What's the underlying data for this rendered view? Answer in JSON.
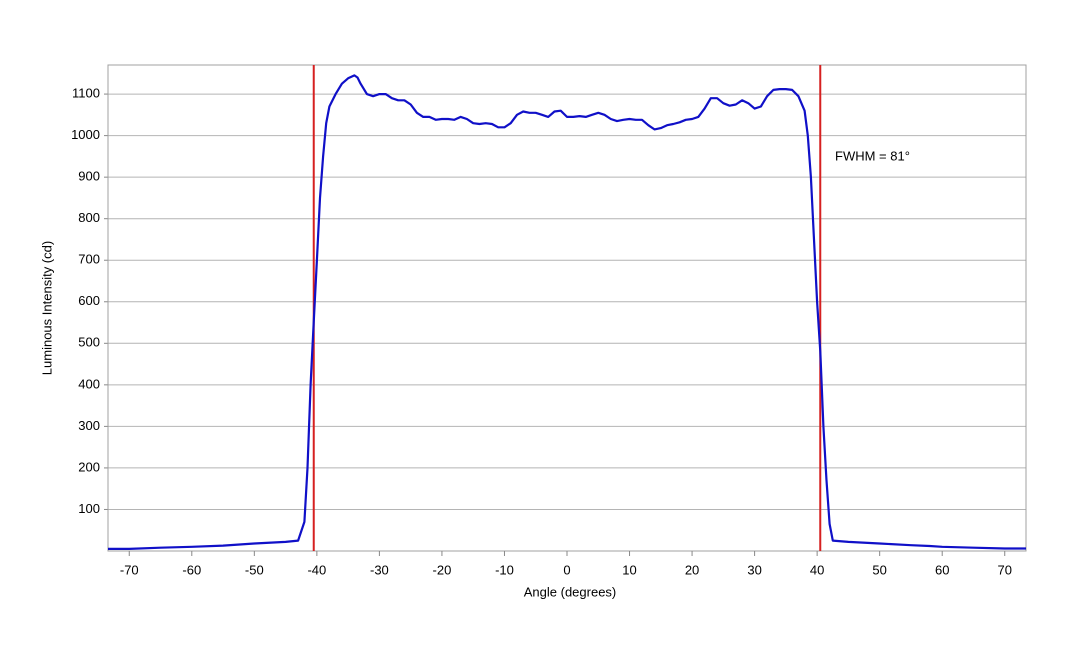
{
  "chart_data": {
    "type": "line",
    "x_label": "Angle (degrees)",
    "y_label": "Luminous Intensity (cd)",
    "annotation": "FWHM = 81°",
    "xlim": [
      -73.4,
      73.4
    ],
    "ylim": [
      0,
      1170
    ],
    "xticks": [
      -70,
      -60,
      -50,
      -40,
      -30,
      -20,
      -10,
      0,
      10,
      20,
      30,
      40,
      50,
      60,
      70
    ],
    "yticks": [
      100,
      200,
      300,
      400,
      500,
      600,
      700,
      800,
      900,
      1000,
      1100
    ],
    "grid": true,
    "vlines": [
      -40.5,
      40.5
    ],
    "vline_color": "#d62020",
    "x": [
      -73.4,
      -70,
      -65,
      -60,
      -55,
      -50,
      -45,
      -43,
      -42,
      -41.5,
      -41,
      -40.5,
      -40,
      -39.5,
      -39,
      -38.5,
      -38,
      -37,
      -36,
      -35,
      -34,
      -33.5,
      -33,
      -32,
      -31,
      -30,
      -29,
      -28,
      -27,
      -26,
      -25,
      -24,
      -23,
      -22,
      -21,
      -20,
      -19,
      -18,
      -17,
      -16,
      -15,
      -14,
      -13,
      -12,
      -11,
      -10,
      -9,
      -8,
      -7,
      -6,
      -5,
      -4,
      -3,
      -2,
      -1,
      0,
      1,
      2,
      3,
      4,
      5,
      6,
      7,
      8,
      9,
      10,
      11,
      12,
      13,
      14,
      15,
      16,
      17,
      18,
      19,
      20,
      21,
      22,
      23,
      24,
      25,
      26,
      27,
      28,
      29,
      30,
      31,
      32,
      33,
      34,
      35,
      36,
      37,
      38,
      38.5,
      39,
      39.5,
      40,
      40.5,
      41,
      41.5,
      42,
      42.5,
      45,
      50,
      55,
      58,
      60,
      65,
      70,
      73.4
    ],
    "series": [
      {
        "name": "Luminous Intensity",
        "color": "#1010c8",
        "values": [
          5,
          5,
          8,
          10,
          13,
          18,
          22,
          25,
          70,
          200,
          400,
          550,
          700,
          850,
          950,
          1030,
          1070,
          1100,
          1125,
          1138,
          1145,
          1140,
          1125,
          1100,
          1095,
          1100,
          1100,
          1090,
          1085,
          1085,
          1075,
          1055,
          1045,
          1045,
          1038,
          1040,
          1040,
          1038,
          1045,
          1040,
          1030,
          1028,
          1030,
          1028,
          1020,
          1020,
          1030,
          1050,
          1058,
          1055,
          1055,
          1050,
          1045,
          1058,
          1060,
          1045,
          1045,
          1047,
          1045,
          1050,
          1055,
          1050,
          1040,
          1035,
          1038,
          1040,
          1038,
          1038,
          1025,
          1015,
          1018,
          1025,
          1028,
          1032,
          1038,
          1040,
          1045,
          1065,
          1090,
          1090,
          1078,
          1072,
          1075,
          1085,
          1078,
          1065,
          1070,
          1095,
          1110,
          1112,
          1112,
          1110,
          1095,
          1060,
          1000,
          900,
          750,
          600,
          480,
          300,
          170,
          65,
          25,
          22,
          18,
          14,
          12,
          10,
          8,
          6,
          6
        ]
      }
    ]
  }
}
